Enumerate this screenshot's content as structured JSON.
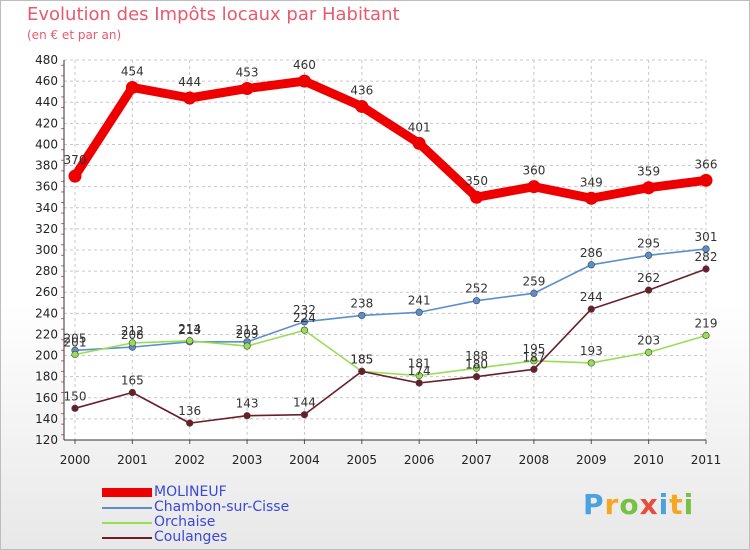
{
  "title": "Evolution des Impôts locaux par Habitant",
  "subtitle": "(en € et par an)",
  "logo": {
    "text": "Proxiti",
    "letters": [
      {
        "ch": "P",
        "color": "#4aa3df"
      },
      {
        "ch": "r",
        "color": "#f5a623"
      },
      {
        "ch": "o",
        "color": "#7ac143"
      },
      {
        "ch": "x",
        "color": "#e84c3d"
      },
      {
        "ch": "i",
        "color": "#4aa3df"
      },
      {
        "ch": "t",
        "color": "#f5a623"
      },
      {
        "ch": "i",
        "color": "#7ac143"
      }
    ]
  },
  "chart_data": {
    "type": "line",
    "title": "Evolution des Impôts locaux par Habitant",
    "subtitle": "(en € et par an)",
    "xlabel": "",
    "ylabel": "",
    "categories": [
      "2000",
      "2001",
      "2002",
      "2003",
      "2004",
      "2005",
      "2006",
      "2007",
      "2008",
      "2009",
      "2010",
      "2011"
    ],
    "ylim": [
      120,
      480
    ],
    "yticks": [
      120,
      140,
      160,
      180,
      200,
      220,
      240,
      260,
      280,
      300,
      320,
      340,
      360,
      380,
      400,
      420,
      440,
      460,
      480
    ],
    "grid": true,
    "legend_position": "bottom-left",
    "series": [
      {
        "name": "MOLINEUF",
        "color": "#ee0000",
        "style": "thick",
        "values": [
          370,
          454,
          444,
          453,
          460,
          436,
          401,
          350,
          360,
          349,
          359,
          366
        ],
        "labels": [
          "370",
          "454",
          "444",
          "453",
          "460",
          "436",
          "401",
          "350",
          "360",
          "349",
          "359",
          "366"
        ]
      },
      {
        "name": "Chambon-sur-Cisse",
        "color": "#5b8fcc",
        "style": "thin",
        "values": [
          205,
          208,
          213,
          213,
          232,
          238,
          241,
          252,
          259,
          286,
          295,
          301
        ],
        "labels": [
          "205",
          "208",
          "213",
          "213",
          "232",
          "238",
          "241",
          "252",
          "259",
          "286",
          "295",
          "301"
        ]
      },
      {
        "name": "Orchaise",
        "color": "#99dd55",
        "style": "thin",
        "values": [
          201,
          212,
          214,
          209,
          224,
          185,
          181,
          188,
          195,
          193,
          203,
          219
        ],
        "labels": [
          "201",
          "212",
          "214",
          "209",
          "224",
          "185",
          "181",
          "188",
          "195",
          "193",
          "203",
          "219"
        ]
      },
      {
        "name": "Coulanges",
        "color": "#6b1e2a",
        "style": "thin",
        "values": [
          150,
          165,
          136,
          143,
          144,
          185,
          174,
          180,
          187,
          244,
          262,
          282
        ],
        "labels": [
          "150",
          "165",
          "136",
          "143",
          "144",
          "185",
          "174",
          "180",
          "187",
          "244",
          "262",
          "282"
        ]
      }
    ]
  }
}
